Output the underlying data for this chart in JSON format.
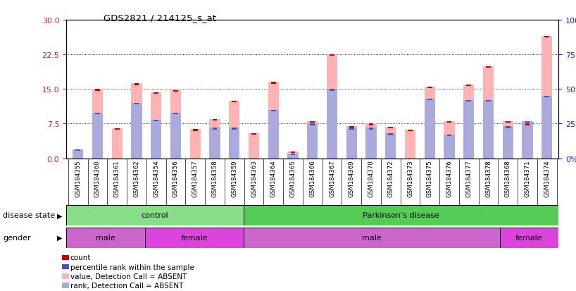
{
  "title": "GDS2821 / 214125_s_at",
  "samples": [
    "GSM184355",
    "GSM184360",
    "GSM184361",
    "GSM184362",
    "GSM184354",
    "GSM184356",
    "GSM184357",
    "GSM184358",
    "GSM184359",
    "GSM184363",
    "GSM184364",
    "GSM184365",
    "GSM184366",
    "GSM184367",
    "GSM184369",
    "GSM184370",
    "GSM184372",
    "GSM184373",
    "GSM184375",
    "GSM184376",
    "GSM184377",
    "GSM184378",
    "GSM184368",
    "GSM184371",
    "GSM184374"
  ],
  "pink_values": [
    2.0,
    15.0,
    6.5,
    16.2,
    14.3,
    14.8,
    6.3,
    8.5,
    12.5,
    5.5,
    16.5,
    1.5,
    8.0,
    22.5,
    7.0,
    7.5,
    6.8,
    6.2,
    15.5,
    8.0,
    16.0,
    20.0,
    8.0,
    7.5,
    26.5
  ],
  "blue_values_pct": [
    6.5,
    33.0,
    0.0,
    40.0,
    28.0,
    33.0,
    0.0,
    22.0,
    22.0,
    0.0,
    35.0,
    3.5,
    25.0,
    50.0,
    22.0,
    22.0,
    18.0,
    0.0,
    43.0,
    17.0,
    42.0,
    42.0,
    23.0,
    27.0,
    45.0
  ],
  "left_yticks": [
    0,
    7.5,
    15.0,
    22.5,
    30
  ],
  "right_yticks": [
    0,
    25,
    50,
    75,
    100
  ],
  "ylim_left": [
    0,
    30
  ],
  "ylim_right": [
    0,
    100
  ],
  "disease_state_groups": [
    {
      "label": "control",
      "start": 0,
      "end": 9,
      "color": "#88dd88"
    },
    {
      "label": "Parkinson's disease",
      "start": 9,
      "end": 25,
      "color": "#55cc55"
    }
  ],
  "gender_groups": [
    {
      "label": "male",
      "start": 0,
      "end": 4,
      "color": "#cc66cc"
    },
    {
      "label": "female",
      "start": 4,
      "end": 9,
      "color": "#dd44dd"
    },
    {
      "label": "male",
      "start": 9,
      "end": 22,
      "color": "#cc66cc"
    },
    {
      "label": "female",
      "start": 22,
      "end": 25,
      "color": "#dd44dd"
    }
  ],
  "pink_color": "#ffb3b3",
  "blue_color": "#aaaadd",
  "red_color": "#cc0000",
  "dark_blue_color": "#4455bb",
  "grid_color": "#000000",
  "left_axis_color": "#cc2222",
  "right_axis_color": "#2222cc",
  "bg_color": "#d8d8d8",
  "plot_bg": "#ffffff",
  "legend_labels": [
    "count",
    "percentile rank within the sample",
    "value, Detection Call = ABSENT",
    "rank, Detection Call = ABSENT"
  ],
  "legend_colors": [
    "#cc0000",
    "#4455bb",
    "#ffb3b3",
    "#aaaadd"
  ]
}
